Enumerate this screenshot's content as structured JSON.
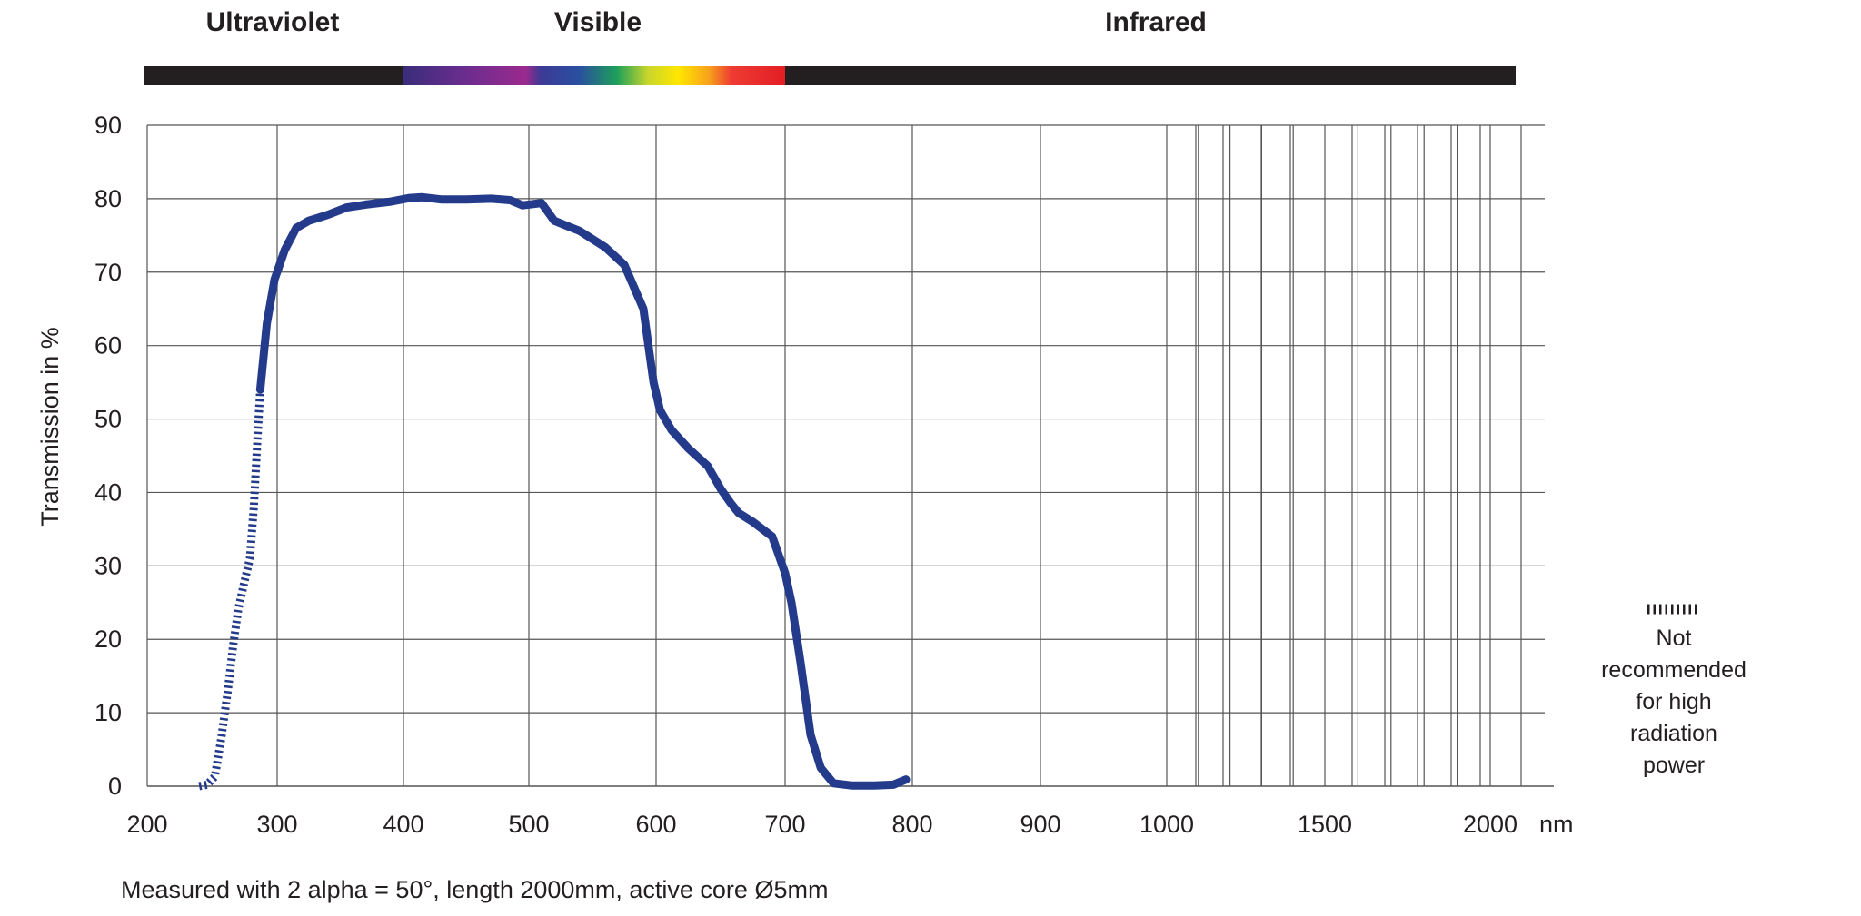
{
  "chart_data": {
    "type": "line",
    "xlabel": "nm",
    "ylabel": "Transmission in %",
    "ylim": [
      0,
      90
    ],
    "yticks": [
      "0",
      "10",
      "20",
      "30",
      "40",
      "50",
      "60",
      "70",
      "80",
      "90"
    ],
    "xticks": [
      "200",
      "300",
      "400",
      "500",
      "600",
      "700",
      "800",
      "900",
      "1000",
      "1500",
      "2000"
    ],
    "spectral_bands": [
      {
        "label": "Ultraviolet",
        "range_nm": [
          200,
          400
        ],
        "color": "#231f20"
      },
      {
        "label": "Visible",
        "range_nm": [
          400,
          700
        ],
        "color": "spectrum"
      },
      {
        "label": "Infrared",
        "range_nm": [
          700,
          2100
        ],
        "color": "#231f20"
      }
    ],
    "series": [
      {
        "color": "#243b8c",
        "style": "solid",
        "x": [
          287,
          292,
          298,
          306,
          315,
          325,
          340,
          355,
          370,
          390,
          405,
          415,
          430,
          450,
          470,
          485,
          495,
          510,
          520,
          540,
          560,
          575,
          590,
          598,
          603,
          612,
          625,
          640,
          650,
          658,
          664,
          675,
          690,
          700,
          705,
          712,
          720,
          728,
          738,
          752,
          770,
          785,
          795
        ],
        "y": [
          54,
          63,
          69,
          73,
          76,
          77,
          77.8,
          78.8,
          79.2,
          79.6,
          80.1,
          80.2,
          79.9,
          79.9,
          80,
          79.8,
          79.1,
          79.4,
          77,
          75.6,
          73.4,
          71,
          65,
          55,
          51.2,
          48.5,
          46,
          43.6,
          40.5,
          38.5,
          37.2,
          36,
          34,
          29,
          25,
          17,
          7,
          2.5,
          0.4,
          0.1,
          0.1,
          0.2,
          0.9
        ]
      },
      {
        "color": "#243b8c",
        "style": "dashed",
        "x": [
          240,
          246,
          252,
          257,
          262,
          266,
          270,
          275,
          279,
          282,
          285,
          287
        ],
        "y": [
          0,
          0.2,
          1.3,
          6.5,
          13,
          19,
          24,
          28,
          31,
          38,
          48,
          54
        ]
      }
    ]
  },
  "legend": {
    "lines": [
      "Not",
      "recommended",
      "for high",
      "radiation",
      "power"
    ]
  },
  "footnote": "Measured with 2 alpha = 50°, length 2000mm, active core Ø5mm"
}
